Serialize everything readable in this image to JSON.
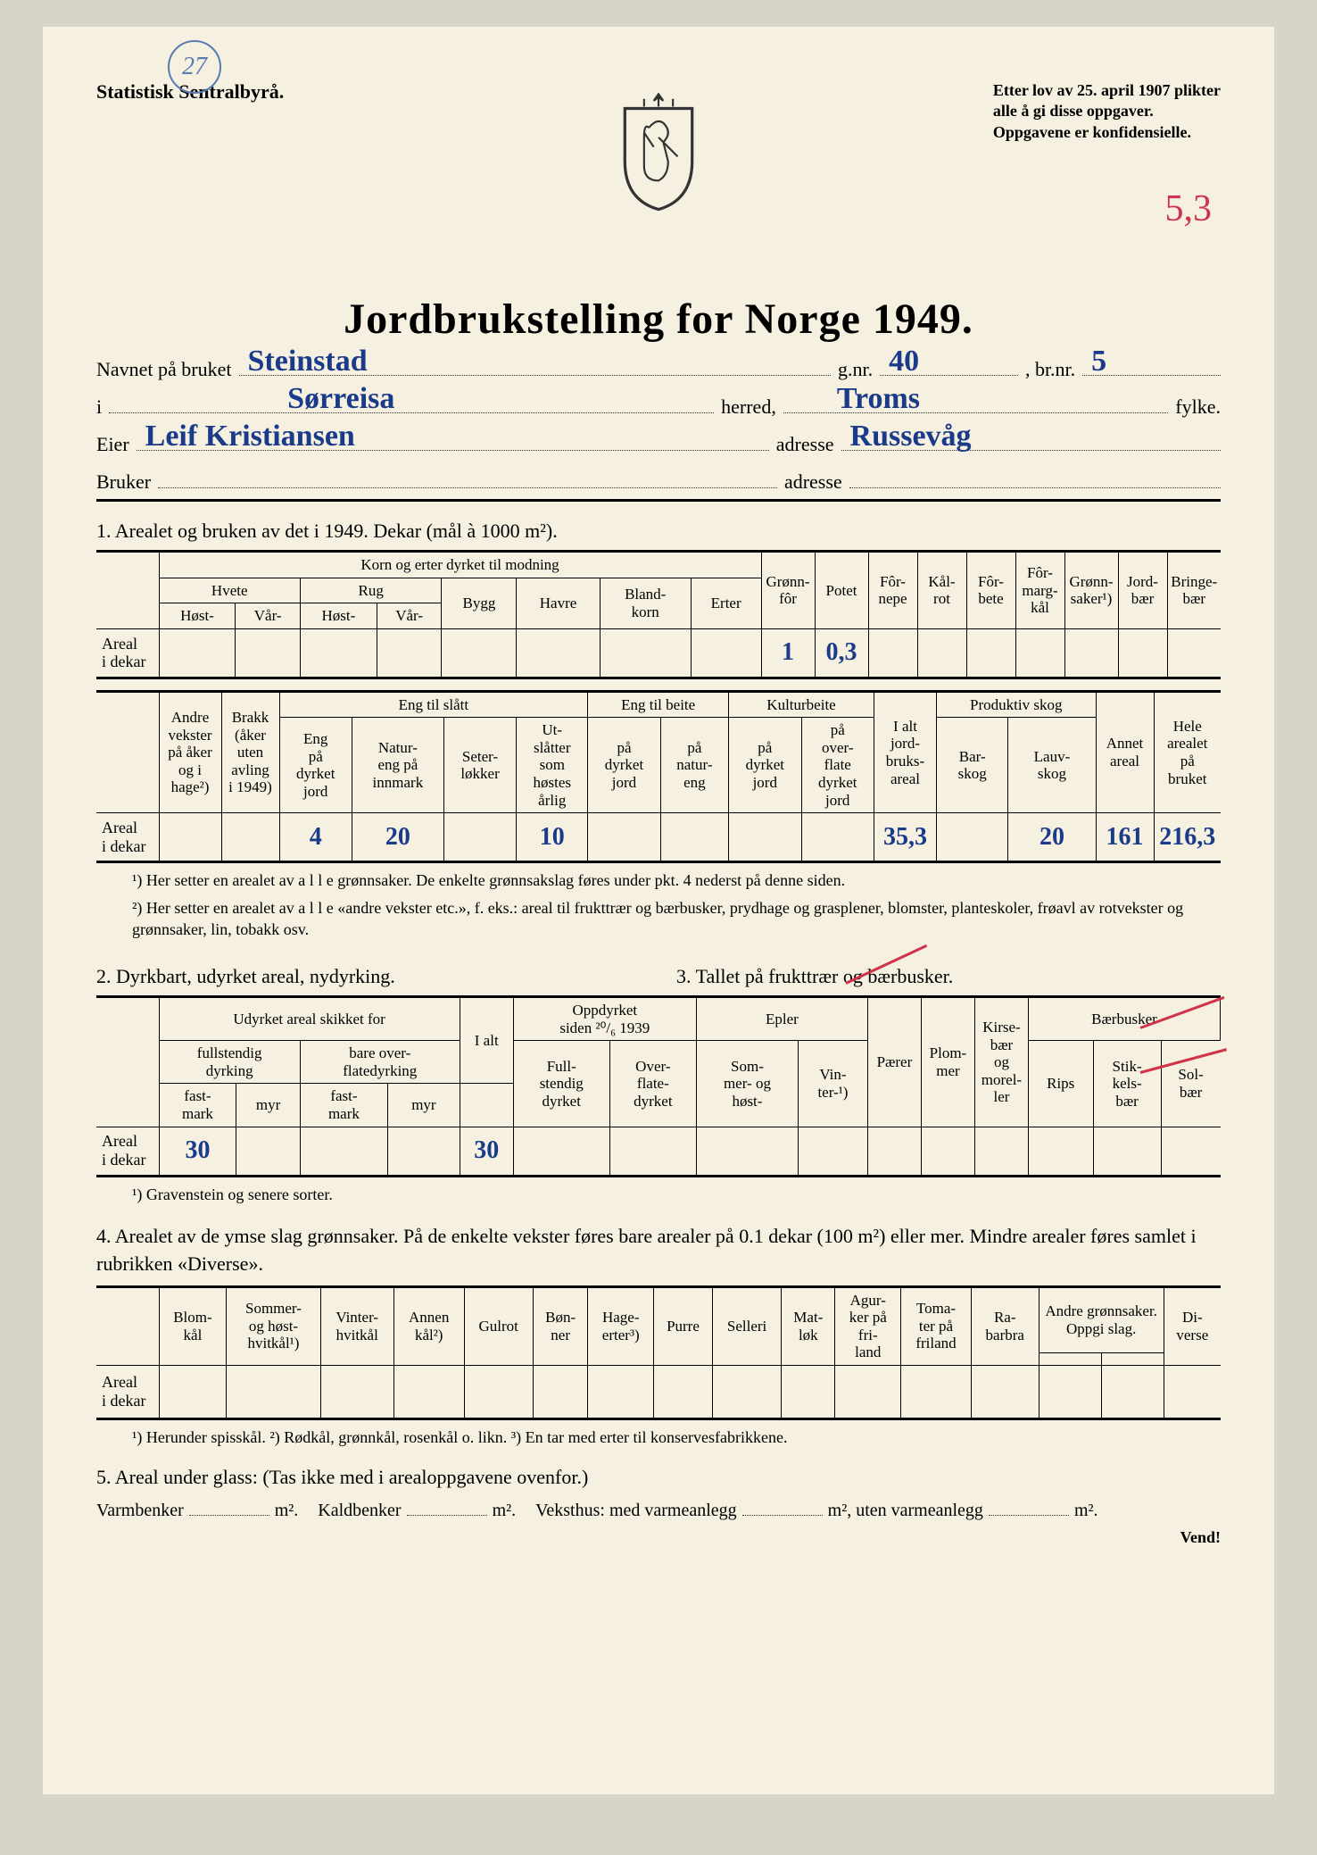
{
  "stamp": "27",
  "agency": "Statistisk Sentralbyrå.",
  "legal": [
    "Etter lov av 25. april 1907 plikter",
    "alle å gi disse oppgaver.",
    "Oppgavene er konfidensielle."
  ],
  "red_annot": "5,3",
  "title": "Jordbrukstelling for Norge 1949.",
  "line1": {
    "lbl_navnet": "Navnet på bruket",
    "val_navnet": "Steinstad",
    "lbl_gnr": "g.nr.",
    "val_gnr": "40",
    "lbl_brnr": ", br.nr.",
    "val_brnr": "5"
  },
  "line2": {
    "lbl_i": "i",
    "val_i": "Sørreisa",
    "lbl_herred": "herred,",
    "val_fylke_l": "",
    "val_fylke": "Troms",
    "lbl_fylke": "fylke."
  },
  "line3": {
    "lbl_eier": "Eier",
    "val_eier": "Leif Kristiansen",
    "lbl_adr": "adresse",
    "val_adr": "Russevåg"
  },
  "line4": {
    "lbl_bruker": "Bruker",
    "lbl_adr": "adresse"
  },
  "sec1": "1.  Arealet og bruken av det i 1949.  Dekar (mål à 1000 m²).",
  "t1_headers": {
    "korn": "Korn og erter dyrket til modning",
    "hvete": "Hvete",
    "rug": "Rug",
    "bygg": "Bygg",
    "havre": "Havre",
    "blandkorn": "Bland-\nkorn",
    "erter": "Erter",
    "host": "Høst-",
    "var": "Vår-",
    "gronnfor": "Grønn-\nfôr",
    "potet": "Potet",
    "fornepe": "Fôr-\nnepe",
    "kalrot": "Kål-\nrot",
    "forbete": "Fôr-\nbete",
    "formargkal": "Fôr-\nmarg-\nkål",
    "gronnsaker": "Grønn-\nsaker¹)",
    "jordbaer": "Jord-\nbær",
    "bringebaer": "Bringe-\nbær"
  },
  "t1_row": {
    "label": "Areal\ni dekar",
    "gronnfor": "1",
    "potet": "0,3"
  },
  "t2_headers": {
    "andre": "Andre\nvekster\npå åker\nog i\nhage²)",
    "brakk": "Brakk\n(åker\nuten\navling\ni 1949)",
    "engslatt": "Eng til slått",
    "engpd": "Eng\npå\ndyrket\njord",
    "natureng": "Natur-\neng på\ninnmark",
    "seter": "Seter-\nløkker",
    "utslatter": "Ut-\nslåtter\nsom\nhøstes\nårlig",
    "engbeite": "Eng til beite",
    "pdyrket": "på\ndyrket\njord",
    "pnatur": "på\nnatur-\neng",
    "kulturbeite": "Kulturbeite",
    "kpdyrket": "på\ndyrket\njord",
    "koverflate": "på\nover-\nflate\ndyrket\njord",
    "ialt": "I alt\njord-\nbruks-\nareal",
    "prodskog": "Produktiv skog",
    "barskog": "Bar-\nskog",
    "lauvskog": "Lauv-\nskog",
    "annet": "Annet\nareal",
    "hele": "Hele\narealet\npå\nbruket"
  },
  "t2_row": {
    "label": "Areal\ni dekar",
    "engpd": "4",
    "natureng": "20",
    "utslatter": "10",
    "ialt": "35,3",
    "lauvskog": "20",
    "annet": "161",
    "hele": "216,3"
  },
  "fn1": "¹) Her setter en arealet av a l l e grønnsaker.  De enkelte grønnsakslag føres under pkt. 4 nederst på denne siden.",
  "fn2": "²) Her setter en arealet av a l l e «andre vekster etc.», f. eks.: areal til frukttrær og bærbusker, prydhage og grasplener, blomster, planteskoler, frøavl av rotvekster og grønnsaker, lin, tobakk osv.",
  "sec2": "2.  Dyrkbart, udyrket areal, nydyrking.",
  "sec3": "3.  Tallet på frukttrær og bærbusker.",
  "t3_headers": {
    "udyrket": "Udyrket areal skikket for",
    "fullstendig": "fullstendig\ndyrking",
    "bareover": "bare over-\nflatedyrking",
    "ialt": "I alt",
    "fastmark": "fast-\nmark",
    "myr": "myr",
    "oppdyrket": "Oppdyrket\nsiden ²⁰/₆ 1939",
    "oppfull": "Full-\nstendig\ndyrket",
    "oppover": "Over-\nflate-\ndyrket",
    "epler": "Epler",
    "sommer": "Som-\nmer- og\nhøst-",
    "vinter": "Vin-\nter-¹)",
    "paerer": "Pærer",
    "plommer": "Plom-\nmer",
    "kirse": "Kirse-\nbær\nog\nmorel-\nler",
    "baerbusker": "Bærbusker",
    "rips": "Rips",
    "stikkels": "Stik-\nkels-\nbær",
    "solbaer": "Sol-\nbær"
  },
  "t3_row": {
    "label": "Areal\ni dekar",
    "fastmark1": "30",
    "ialt": "30"
  },
  "fn3": "¹) Gravenstein og senere sorter.",
  "sec4": "4.  Arealet av de ymse slag grønnsaker. På de enkelte vekster føres bare arealer på 0.1 dekar (100 m²) eller mer. Mindre arealer føres samlet i rubrikken «Diverse».",
  "t4_headers": {
    "blomkal": "Blom-\nkål",
    "sommerhvitkal": "Sommer-\nog høst-\nhvitkål¹)",
    "vinterhvitkal": "Vinter-\nhvitkål",
    "annenkal": "Annen\nkål²)",
    "gulrot": "Gulrot",
    "bonner": "Bøn-\nner",
    "hageerter": "Hage-\nerter³)",
    "purre": "Purre",
    "selleri": "Selleri",
    "matlok": "Mat-\nløk",
    "agurker": "Agur-\nker på\nfri-\nland",
    "tomater": "Toma-\nter på\nfriland",
    "rabarb": "Ra-\nbarbra",
    "andre": "Andre grønnsaker.\nOppgi slag.",
    "diverse": "Di-\nverse"
  },
  "t4_row": {
    "label": "Areal\ni dekar"
  },
  "fn4": "¹) Herunder spisskål.  ²) Rødkål, grønnkål, rosenkål o. likn.  ³) En tar med erter til konservesfabrikkene.",
  "sec5": "5.  Areal under glass:  (Tas ikke med i arealoppgavene ovenfor.)",
  "bottom": {
    "varmbenker": "Varmbenker",
    "m2a": "m².",
    "kaldbenker": "Kaldbenker",
    "veksthus": "Veksthus: med varmeanlegg",
    "uten": "m², uten varmeanlegg"
  },
  "vend": "Vend!"
}
